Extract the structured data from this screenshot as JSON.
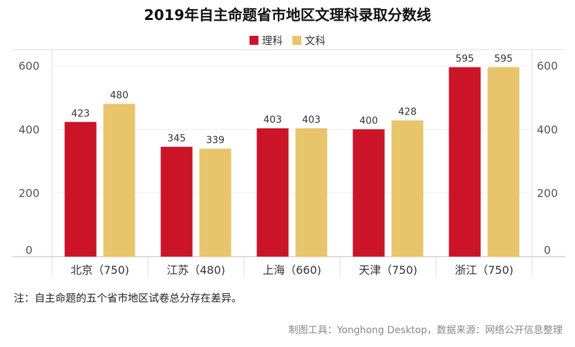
{
  "chart_data": {
    "type": "bar",
    "title": "2019年自主命题省市地区文理科录取分数线",
    "categories": [
      "北京（750)",
      "江苏（480)",
      "上海（660)",
      "天津（750)",
      "浙江（750)"
    ],
    "series": [
      {
        "name": "理科",
        "color": "#cc1429",
        "values": [
          423,
          345,
          403,
          400,
          595
        ]
      },
      {
        "name": "文科",
        "color": "#e8c46b",
        "values": [
          480,
          339,
          403,
          428,
          595
        ]
      }
    ],
    "ylim": [
      0,
      650
    ],
    "y_ticks": [
      0,
      200,
      400,
      600
    ],
    "grid": true,
    "legend_position": "top-center",
    "secondary_axis": true
  },
  "note": "注：自主命题的五个省市地区试卷总分存在差异。",
  "source": "制图工具：Yonghong Desktop，数据来源：网络公开信息整理"
}
